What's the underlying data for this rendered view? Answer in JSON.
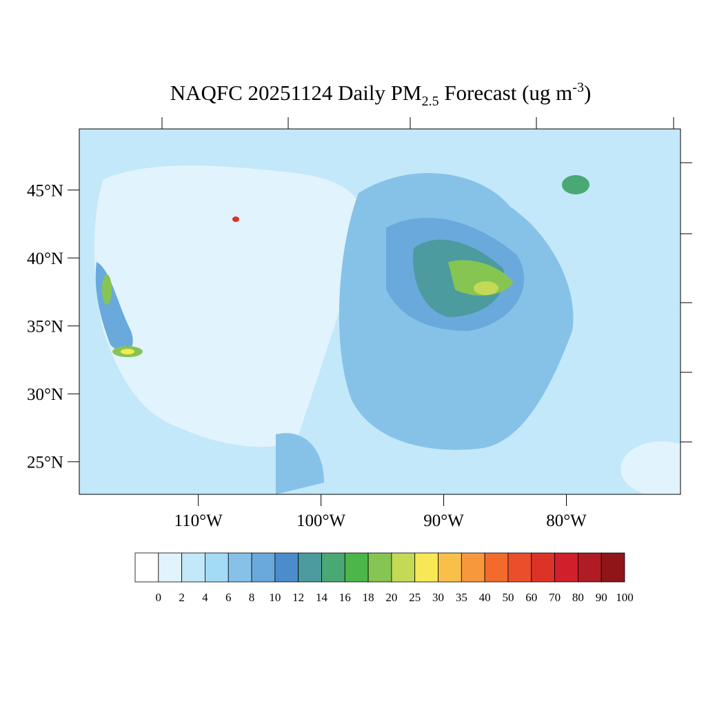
{
  "map": {
    "title": {
      "main": "NAQFC 20251124 Daily PM",
      "sub": "2.5",
      "rest": " Forecast (ug m",
      "sup": "-3",
      "end": ")"
    },
    "latlim": [
      22.6,
      49.5
    ],
    "lonlim": [
      -119.7,
      -70.7
    ],
    "lat_ticks": [
      {
        "value": 45,
        "label": "45°N"
      },
      {
        "value": 40,
        "label": "40°N"
      },
      {
        "value": 35,
        "label": "35°N"
      },
      {
        "value": 30,
        "label": "30°N"
      },
      {
        "value": 25,
        "label": "25°N"
      }
    ],
    "lon_ticks": [
      {
        "value": -110,
        "label": "110°W"
      },
      {
        "value": -100,
        "label": "100°W"
      },
      {
        "value": -90,
        "label": "90°W"
      },
      {
        "value": -80,
        "label": "80°W"
      }
    ],
    "colorbar": {
      "labels": [
        0,
        2,
        4,
        6,
        8,
        10,
        12,
        14,
        16,
        18,
        20,
        25,
        30,
        35,
        40,
        50,
        60,
        70,
        80,
        90,
        100
      ],
      "colors": [
        "#ffffff",
        "#e1f3fc",
        "#c2e8f9",
        "#a3dbf5",
        "#86c2e8",
        "#6aa9dc",
        "#4b8ccb",
        "#4b9b9f",
        "#4aa874",
        "#4cb64a",
        "#86c552",
        "#c4d955",
        "#f8e856",
        "#f8c048",
        "#f6983b",
        "#f26a2c",
        "#eb4e2b",
        "#dd3227",
        "#d11f2b",
        "#b01c24",
        "#8f1519"
      ]
    }
  }
}
